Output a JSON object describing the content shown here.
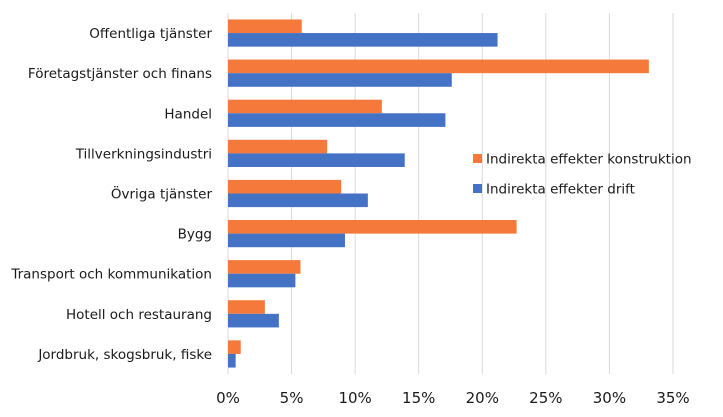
{
  "chart_data": {
    "type": "bar",
    "orientation": "horizontal",
    "categories": [
      "Offentliga tjänster",
      "Företagstjänster och finans",
      "Handel",
      "Tillverkningsindustri",
      "Övriga tjänster",
      "Bygg",
      "Transport och kommunikation",
      "Hotell och restaurang",
      "Jordbruk, skogsbruk, fiske"
    ],
    "series": [
      {
        "name": "Indirekta effekter konstruktion",
        "color": "#F4793B",
        "values": [
          5.8,
          33.1,
          12.1,
          7.8,
          8.9,
          22.7,
          5.7,
          2.9,
          1.0
        ]
      },
      {
        "name": "Indirekta effekter drift",
        "color": "#4472C4",
        "values": [
          21.2,
          17.6,
          17.1,
          13.9,
          11.0,
          9.2,
          5.3,
          4.0,
          0.6
        ]
      }
    ],
    "xlim": [
      0,
      35
    ],
    "xticks": [
      0,
      5,
      10,
      15,
      20,
      25,
      30,
      35
    ],
    "tick_suffix": "%",
    "grid": true,
    "legend_position": "right"
  }
}
